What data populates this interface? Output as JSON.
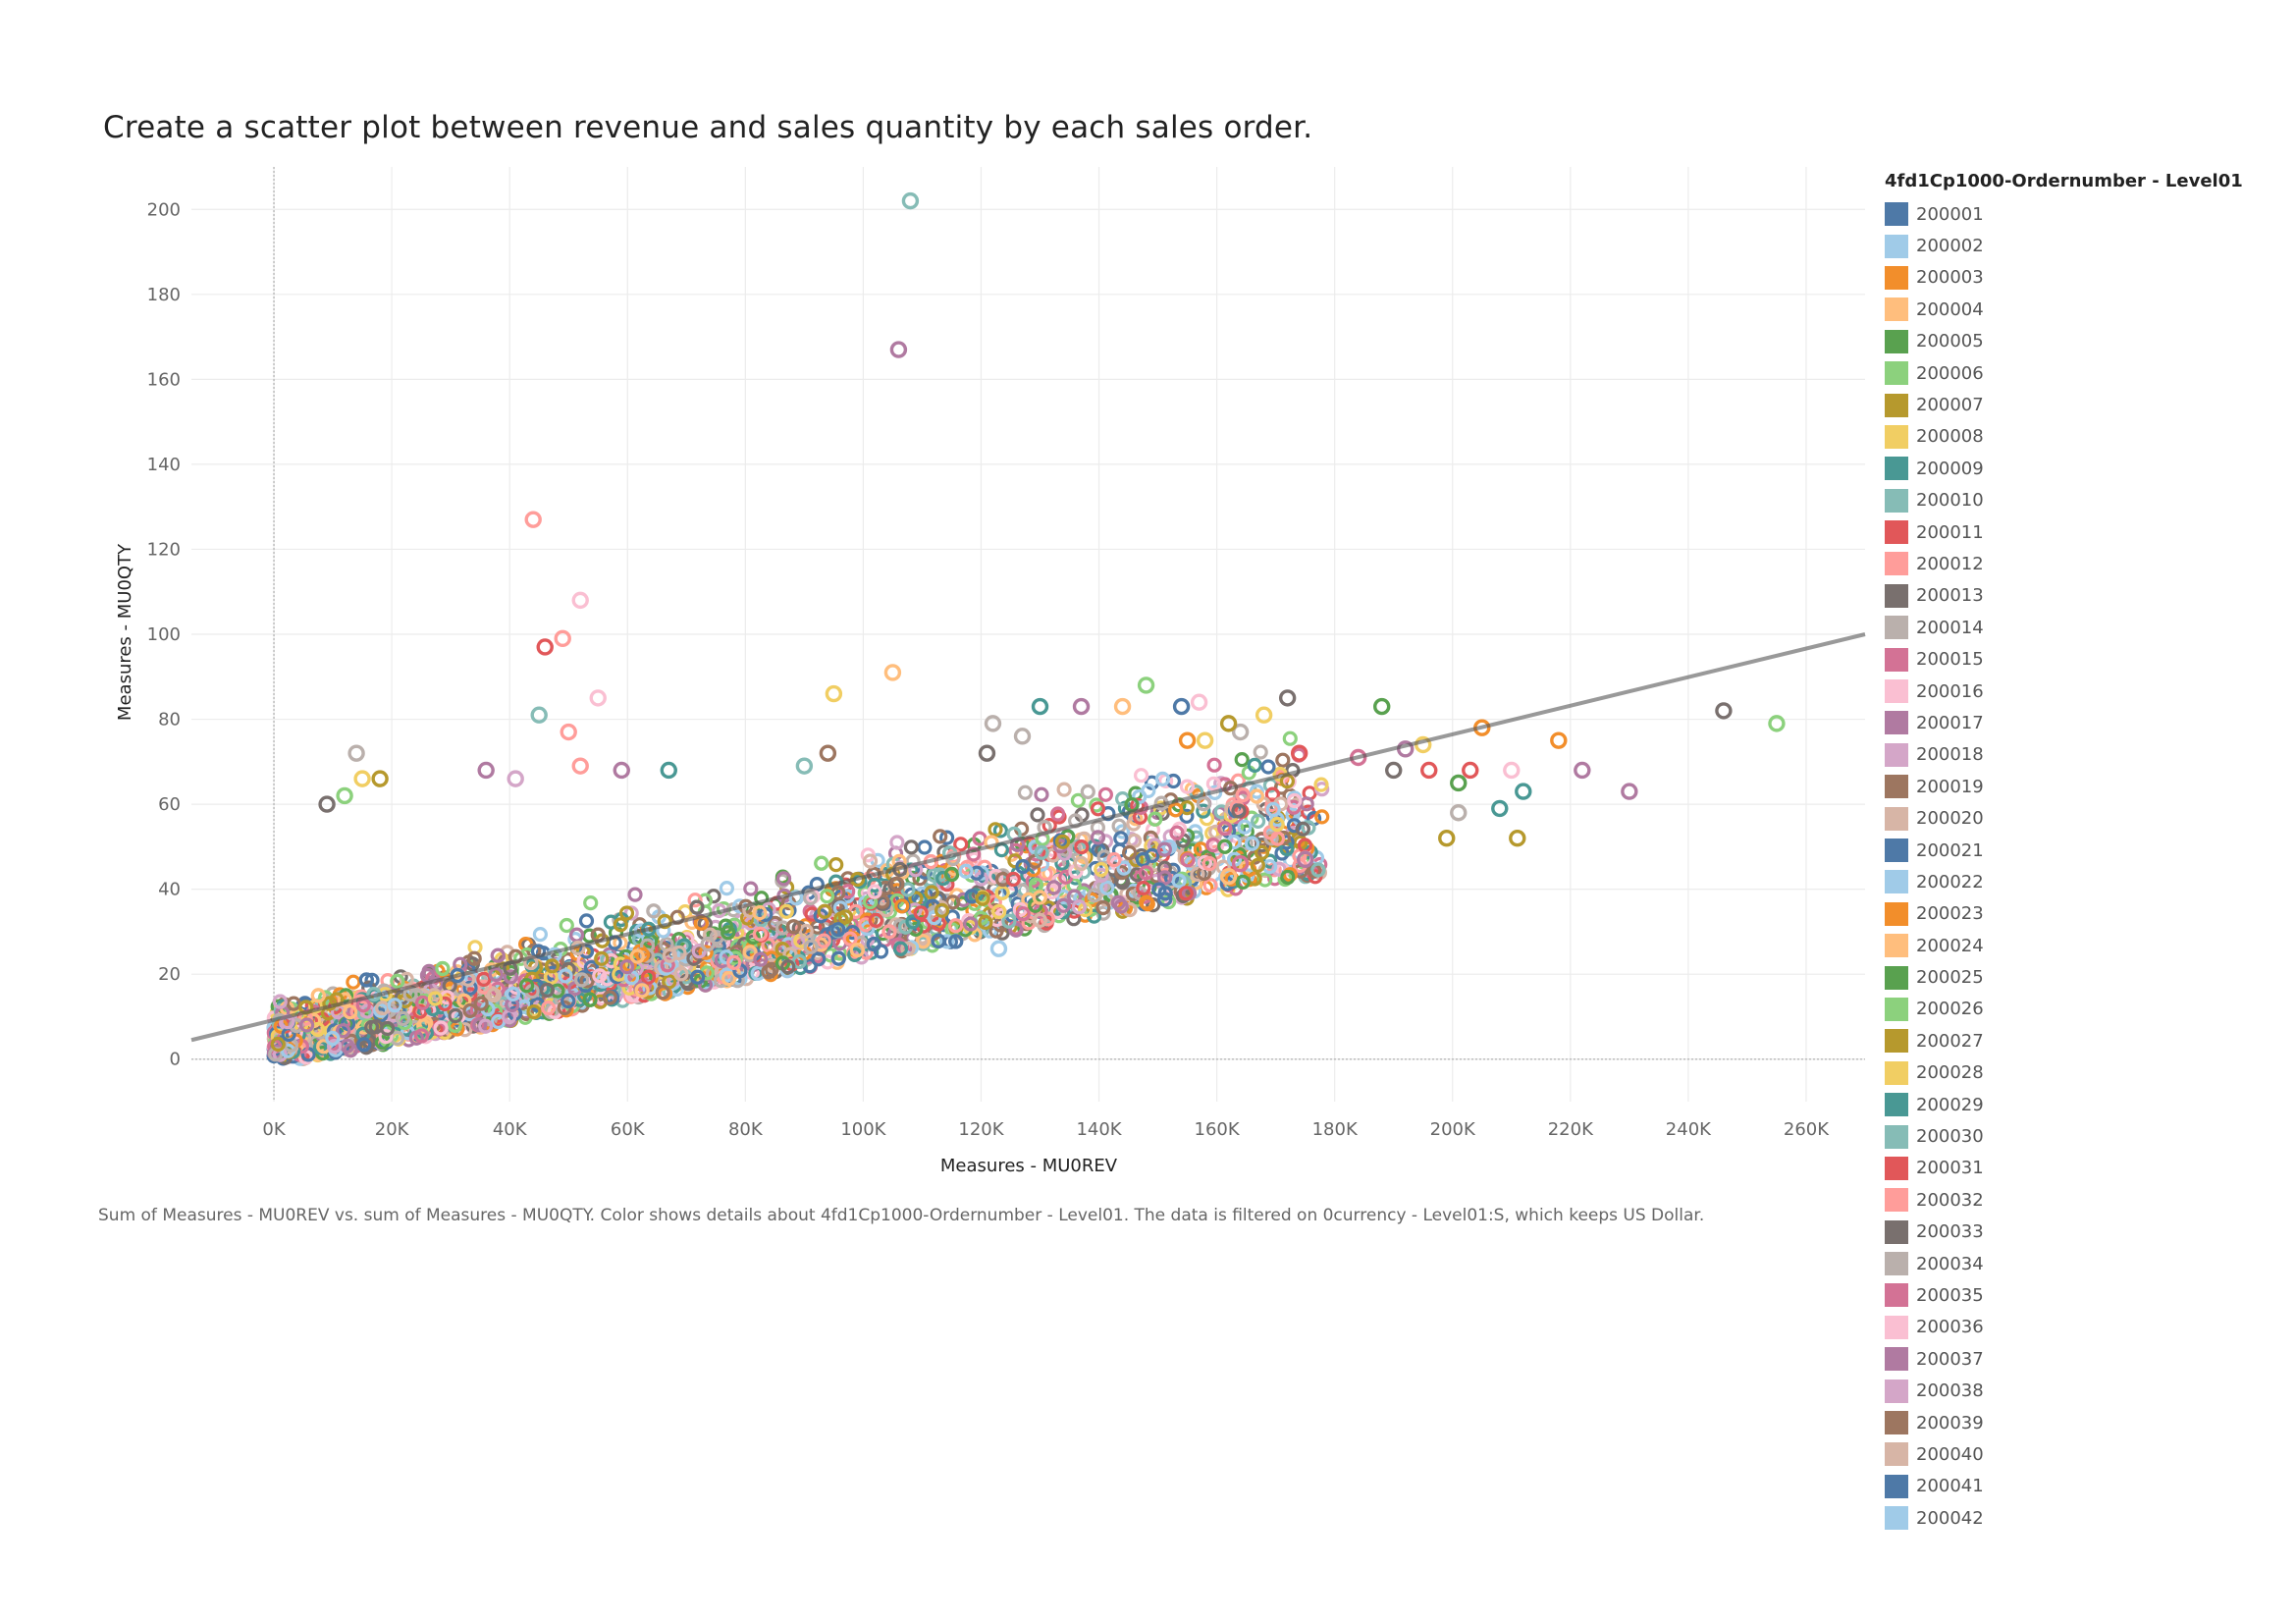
{
  "title": "Create a scatter plot between revenue and sales quantity by each sales order.",
  "caption": "Sum of Measures - MU0REV vs. sum of Measures - MU0QTY.  Color shows details about 4fd1Cp1000-Ordernumber - Level01. The data is filtered on 0currency - Level01:S, which keeps US Dollar.",
  "legend": {
    "title": "4fd1Cp1000-Ordernumber - Level01",
    "items": [
      {
        "label": "200001",
        "color": "#4e79a7"
      },
      {
        "label": "200002",
        "color": "#a0cbe8"
      },
      {
        "label": "200003",
        "color": "#f28e2b"
      },
      {
        "label": "200004",
        "color": "#ffbe7d"
      },
      {
        "label": "200005",
        "color": "#59a14f"
      },
      {
        "label": "200006",
        "color": "#8cd17d"
      },
      {
        "label": "200007",
        "color": "#b6992d"
      },
      {
        "label": "200008",
        "color": "#f1ce63"
      },
      {
        "label": "200009",
        "color": "#499894"
      },
      {
        "label": "200010",
        "color": "#86bcb6"
      },
      {
        "label": "200011",
        "color": "#e15759"
      },
      {
        "label": "200012",
        "color": "#ff9d9a"
      },
      {
        "label": "200013",
        "color": "#79706e"
      },
      {
        "label": "200014",
        "color": "#bab0ac"
      },
      {
        "label": "200015",
        "color": "#d37295"
      },
      {
        "label": "200016",
        "color": "#fabfd2"
      },
      {
        "label": "200017",
        "color": "#b07aa1"
      },
      {
        "label": "200018",
        "color": "#d4a6c8"
      },
      {
        "label": "200019",
        "color": "#9d7660"
      },
      {
        "label": "200020",
        "color": "#d7b5a6"
      },
      {
        "label": "200021",
        "color": "#4e79a7"
      },
      {
        "label": "200022",
        "color": "#a0cbe8"
      },
      {
        "label": "200023",
        "color": "#f28e2b"
      },
      {
        "label": "200024",
        "color": "#ffbe7d"
      },
      {
        "label": "200025",
        "color": "#59a14f"
      },
      {
        "label": "200026",
        "color": "#8cd17d"
      },
      {
        "label": "200027",
        "color": "#b6992d"
      },
      {
        "label": "200028",
        "color": "#f1ce63"
      },
      {
        "label": "200029",
        "color": "#499894"
      },
      {
        "label": "200030",
        "color": "#86bcb6"
      },
      {
        "label": "200031",
        "color": "#e15759"
      },
      {
        "label": "200032",
        "color": "#ff9d9a"
      },
      {
        "label": "200033",
        "color": "#79706e"
      },
      {
        "label": "200034",
        "color": "#bab0ac"
      },
      {
        "label": "200035",
        "color": "#d37295"
      },
      {
        "label": "200036",
        "color": "#fabfd2"
      },
      {
        "label": "200037",
        "color": "#b07aa1"
      },
      {
        "label": "200038",
        "color": "#d4a6c8"
      },
      {
        "label": "200039",
        "color": "#9d7660"
      },
      {
        "label": "200040",
        "color": "#d7b5a6"
      },
      {
        "label": "200041",
        "color": "#4e79a7"
      },
      {
        "label": "200042",
        "color": "#a0cbe8"
      }
    ]
  },
  "chart_data": {
    "type": "scatter",
    "title": "Create a scatter plot between revenue and sales quantity by each sales order.",
    "xlabel": "Measures - MU0REV",
    "ylabel": "Measures - MU0QTY",
    "xlim": [
      -14000,
      270000
    ],
    "ylim": [
      -10,
      210
    ],
    "xticks": [
      0,
      20000,
      40000,
      60000,
      80000,
      100000,
      120000,
      140000,
      160000,
      180000,
      200000,
      220000,
      240000,
      260000
    ],
    "xtick_labels": [
      "0K",
      "20K",
      "40K",
      "60K",
      "80K",
      "100K",
      "120K",
      "140K",
      "160K",
      "180K",
      "200K",
      "220K",
      "240K",
      "260K"
    ],
    "yticks": [
      0,
      20,
      40,
      60,
      80,
      100,
      120,
      140,
      160,
      180,
      200
    ],
    "ytick_labels": [
      "0",
      "20",
      "40",
      "60",
      "80",
      "100",
      "120",
      "140",
      "160",
      "180",
      "200"
    ],
    "grid": true,
    "marker": "open-circle",
    "legend_position": "right",
    "trend_line": {
      "x": [
        -14000,
        270000
      ],
      "y": [
        4.5,
        100
      ]
    },
    "points": [
      {
        "x": 108000,
        "y": 202,
        "series": "200010"
      },
      {
        "x": 106000,
        "y": 167,
        "series": "200017"
      },
      {
        "x": 44000,
        "y": 127,
        "series": "200012"
      },
      {
        "x": 52000,
        "y": 108,
        "series": "200016"
      },
      {
        "x": 49000,
        "y": 99,
        "series": "200012"
      },
      {
        "x": 46000,
        "y": 97,
        "series": "200011"
      },
      {
        "x": 105000,
        "y": 91,
        "series": "200004"
      },
      {
        "x": 95000,
        "y": 86,
        "series": "200008"
      },
      {
        "x": 55000,
        "y": 85,
        "series": "200016"
      },
      {
        "x": 45000,
        "y": 81,
        "series": "200010"
      },
      {
        "x": 50000,
        "y": 77,
        "series": "200012"
      },
      {
        "x": 148000,
        "y": 88,
        "series": "200006"
      },
      {
        "x": 172000,
        "y": 85,
        "series": "200013"
      },
      {
        "x": 130000,
        "y": 83,
        "series": "200009"
      },
      {
        "x": 137000,
        "y": 83,
        "series": "200017"
      },
      {
        "x": 144000,
        "y": 83,
        "series": "200004"
      },
      {
        "x": 154000,
        "y": 83,
        "series": "200021"
      },
      {
        "x": 157000,
        "y": 84,
        "series": "200016"
      },
      {
        "x": 188000,
        "y": 83,
        "series": "200005"
      },
      {
        "x": 246000,
        "y": 82,
        "series": "200013"
      },
      {
        "x": 255000,
        "y": 79,
        "series": "200006"
      },
      {
        "x": 205000,
        "y": 78,
        "series": "200003"
      },
      {
        "x": 218000,
        "y": 75,
        "series": "200023"
      },
      {
        "x": 155000,
        "y": 75,
        "series": "200003"
      },
      {
        "x": 158000,
        "y": 75,
        "series": "200008"
      },
      {
        "x": 168000,
        "y": 81,
        "series": "200008"
      },
      {
        "x": 164000,
        "y": 77,
        "series": "200014"
      },
      {
        "x": 162000,
        "y": 79,
        "series": "200027"
      },
      {
        "x": 195000,
        "y": 74,
        "series": "200008"
      },
      {
        "x": 192000,
        "y": 73,
        "series": "200017"
      },
      {
        "x": 174000,
        "y": 72,
        "series": "200011"
      },
      {
        "x": 184000,
        "y": 71,
        "series": "200015"
      },
      {
        "x": 190000,
        "y": 68,
        "series": "200013"
      },
      {
        "x": 196000,
        "y": 68,
        "series": "200011"
      },
      {
        "x": 203000,
        "y": 68,
        "series": "200031"
      },
      {
        "x": 210000,
        "y": 68,
        "series": "200016"
      },
      {
        "x": 222000,
        "y": 68,
        "series": "200017"
      },
      {
        "x": 201000,
        "y": 65,
        "series": "200025"
      },
      {
        "x": 212000,
        "y": 63,
        "series": "200029"
      },
      {
        "x": 230000,
        "y": 63,
        "series": "200037"
      },
      {
        "x": 208000,
        "y": 59,
        "series": "200009"
      },
      {
        "x": 201000,
        "y": 58,
        "series": "200014"
      },
      {
        "x": 199000,
        "y": 52,
        "series": "200007"
      },
      {
        "x": 211000,
        "y": 52,
        "series": "200027"
      },
      {
        "x": 175000,
        "y": 47,
        "series": "200037"
      },
      {
        "x": 164000,
        "y": 46,
        "series": "200015"
      },
      {
        "x": 162000,
        "y": 43,
        "series": "200004"
      },
      {
        "x": 123000,
        "y": 26,
        "series": "200002"
      },
      {
        "x": 14000,
        "y": 72,
        "series": "200014"
      },
      {
        "x": 18000,
        "y": 66,
        "series": "200027"
      },
      {
        "x": 15000,
        "y": 66,
        "series": "200008"
      },
      {
        "x": 9000,
        "y": 60,
        "series": "200013"
      },
      {
        "x": 12000,
        "y": 62,
        "series": "200006"
      },
      {
        "x": 36000,
        "y": 68,
        "series": "200017"
      },
      {
        "x": 41000,
        "y": 66,
        "series": "200018"
      },
      {
        "x": 52000,
        "y": 69,
        "series": "200012"
      },
      {
        "x": 59000,
        "y": 68,
        "series": "200017"
      },
      {
        "x": 67000,
        "y": 68,
        "series": "200009"
      },
      {
        "x": 94000,
        "y": 72,
        "series": "200019"
      },
      {
        "x": 90000,
        "y": 69,
        "series": "200010"
      },
      {
        "x": 122000,
        "y": 79,
        "series": "200014"
      },
      {
        "x": 127000,
        "y": 76,
        "series": "200014"
      },
      {
        "x": 121000,
        "y": 72,
        "series": "200013"
      }
    ]
  }
}
